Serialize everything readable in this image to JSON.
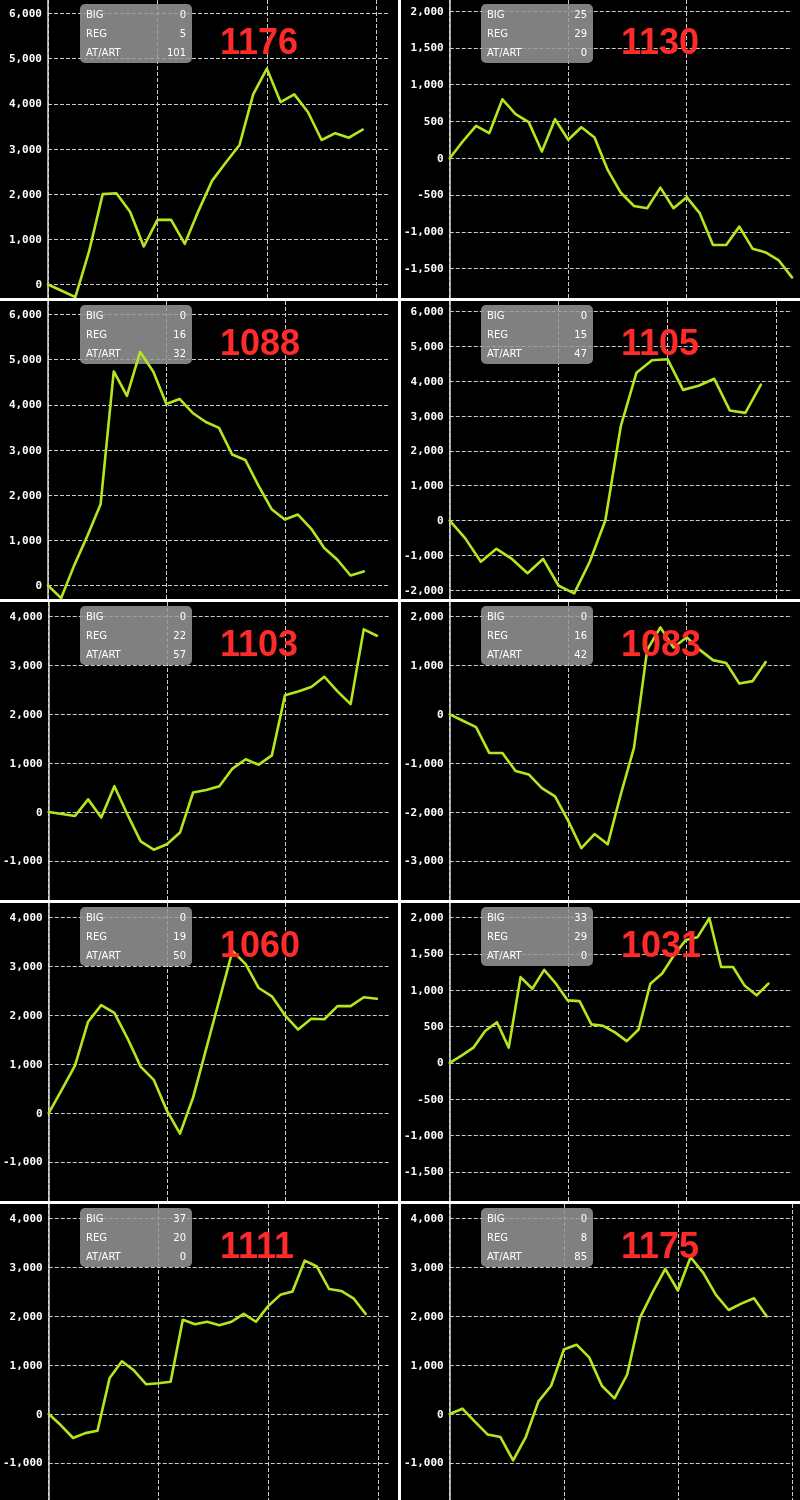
{
  "chart_data": [
    {
      "type": "line",
      "title": "1176",
      "annotations": [
        "BIG",
        "0",
        "REG",
        "5",
        "AT/ART",
        "101"
      ],
      "categories": [
        null,
        null,
        null,
        null,
        null,
        null,
        null,
        null,
        null,
        null,
        null,
        null,
        null,
        null,
        null,
        null,
        null,
        null,
        null,
        null,
        null,
        null,
        null,
        null,
        null,
        null
      ],
      "series": [
        {
          "color": "#b5e61d",
          "values": [
            0,
            -140,
            -280,
            730,
            2000,
            2020,
            1610,
            840,
            1430,
            1430,
            900,
            1630,
            2300,
            2700,
            3090,
            4210,
            4780,
            4040,
            4210,
            3820,
            3200,
            3350,
            3250,
            3430,
            null,
            null
          ]
        }
      ],
      "ylim": [
        -300,
        6300
      ],
      "yticks": [
        {
          "value": 0,
          "label": "0"
        },
        {
          "value": 1000,
          "label": "1,000"
        },
        {
          "value": 2000,
          "label": "2,000"
        },
        {
          "value": 3000,
          "label": "3,000"
        },
        {
          "value": 4000,
          "label": "4,000"
        },
        {
          "value": 5000,
          "label": "5,000"
        },
        {
          "value": 6000,
          "label": "6,000"
        }
      ],
      "grid": true,
      "tick_labels": "y",
      "marker": "none",
      "line_style": "solid"
    },
    {
      "type": "line",
      "title": "1130",
      "annotations": [
        "BIG",
        "25",
        "REG",
        "29",
        "AT/ART",
        "0"
      ],
      "categories": [
        null,
        null,
        null,
        null,
        null,
        null,
        null,
        null,
        null,
        null,
        null,
        null,
        null,
        null,
        null,
        null,
        null,
        null,
        null,
        null,
        null,
        null,
        null,
        null,
        null,
        null,
        null
      ],
      "series": [
        {
          "color": "#b5e61d",
          "values": [
            0,
            230,
            440,
            340,
            800,
            600,
            490,
            90,
            530,
            250,
            420,
            280,
            -160,
            -470,
            -650,
            -680,
            -400,
            -680,
            -530,
            -750,
            -1180,
            -1180,
            -930,
            -1230,
            -1280,
            -1390,
            -1620
          ]
        }
      ],
      "ylim": [
        -1900,
        2150
      ],
      "yticks": [
        {
          "value": -1500,
          "label": "-1,500"
        },
        {
          "value": -1000,
          "label": "-1,000"
        },
        -500,
        0,
        500,
        {
          "value": 1000,
          "label": "1,000"
        },
        {
          "value": 1500,
          "label": "1,500"
        },
        {
          "value": 2000,
          "label": "2,000"
        }
      ],
      "grid": true,
      "tick_labels": "y",
      "marker": "none",
      "line_style": "solid"
    },
    {
      "type": "line",
      "title": "1088",
      "annotations": [
        "BIG",
        "0",
        "REG",
        "16",
        "AT/ART",
        "32"
      ],
      "categories": [
        null,
        null,
        null,
        null,
        null,
        null,
        null,
        null,
        null,
        null,
        null,
        null,
        null,
        null,
        null,
        null,
        null,
        null,
        null,
        null,
        null,
        null,
        null,
        null,
        null,
        null,
        null
      ],
      "series": [
        {
          "color": "#b5e61d",
          "values": [
            0,
            -280,
            450,
            1100,
            1800,
            4740,
            4200,
            5170,
            4740,
            4020,
            4130,
            3820,
            3620,
            3490,
            2900,
            2780,
            2210,
            1690,
            1460,
            1570,
            1260,
            830,
            570,
            220,
            310,
            null,
            null
          ]
        }
      ],
      "ylim": [
        -300,
        6300
      ],
      "yticks": [
        {
          "value": 0,
          "label": "0"
        },
        {
          "value": 1000,
          "label": "1,000"
        },
        {
          "value": 2000,
          "label": "2,000"
        },
        {
          "value": 3000,
          "label": "3,000"
        },
        {
          "value": 4000,
          "label": "4,000"
        },
        {
          "value": 5000,
          "label": "5,000"
        },
        {
          "value": 6000,
          "label": "6,000"
        }
      ],
      "grid": true,
      "tick_labels": "y",
      "marker": "none",
      "line_style": "solid"
    },
    {
      "type": "line",
      "title": "1105",
      "annotations": [
        "BIG",
        "0",
        "REG",
        "15",
        "AT/ART",
        "47"
      ],
      "categories": [
        null,
        null,
        null,
        null,
        null,
        null,
        null,
        null,
        null,
        null,
        null,
        null,
        null,
        null,
        null,
        null,
        null,
        null,
        null,
        null,
        null,
        null,
        null
      ],
      "series": [
        {
          "color": "#b5e61d",
          "values": [
            0,
            -510,
            -1180,
            -810,
            -1100,
            -1510,
            -1100,
            -1870,
            -2090,
            -1180,
            0,
            2720,
            4240,
            4600,
            4630,
            3750,
            3870,
            4070,
            3160,
            3090,
            3900,
            null,
            null
          ]
        }
      ],
      "ylim": [
        -2250,
        6300
      ],
      "yticks": [
        {
          "value": -2000,
          "label": "-2,000"
        },
        {
          "value": -1000,
          "label": "-1,000"
        },
        0,
        {
          "value": 1000,
          "label": "1,000"
        },
        {
          "value": 2000,
          "label": "2,000"
        },
        {
          "value": 3000,
          "label": "3,000"
        },
        {
          "value": 4000,
          "label": "4,000"
        },
        {
          "value": 5000,
          "label": "5,000"
        },
        {
          "value": 6000,
          "label": "6,000"
        }
      ],
      "grid": true,
      "tick_labels": "y",
      "marker": "none",
      "line_style": "solid"
    },
    {
      "type": "line",
      "title": "1103",
      "annotations": [
        "BIG",
        "0",
        "REG",
        "22",
        "AT/ART",
        "57"
      ],
      "categories": [
        null,
        null,
        null,
        null,
        null,
        null,
        null,
        null,
        null,
        null,
        null,
        null,
        null,
        null,
        null,
        null,
        null,
        null,
        null,
        null,
        null,
        null,
        null,
        null,
        null,
        null,
        null
      ],
      "series": [
        {
          "color": "#b5e61d",
          "values": [
            0,
            -40,
            -80,
            260,
            -110,
            530,
            -50,
            -600,
            -770,
            -660,
            -420,
            400,
            450,
            530,
            890,
            1080,
            970,
            1160,
            2390,
            2470,
            2560,
            2770,
            2470,
            2210,
            3740,
            3610,
            null
          ]
        }
      ],
      "ylim": [
        -1800,
        4300
      ],
      "yticks": [
        {
          "value": -1000,
          "label": "-1,000"
        },
        0,
        {
          "value": 1000,
          "label": "1,000"
        },
        {
          "value": 2000,
          "label": "2,000"
        },
        {
          "value": 3000,
          "label": "3,000"
        },
        {
          "value": 4000,
          "label": "4,000"
        }
      ],
      "grid": true,
      "tick_labels": "y",
      "marker": "none",
      "line_style": "solid"
    },
    {
      "type": "line",
      "title": "1083",
      "annotations": [
        "BIG",
        "0",
        "REG",
        "16",
        "AT/ART",
        "42"
      ],
      "categories": [
        null,
        null,
        null,
        null,
        null,
        null,
        null,
        null,
        null,
        null,
        null,
        null,
        null,
        null,
        null,
        null,
        null,
        null,
        null,
        null,
        null,
        null,
        null,
        null,
        null,
        null,
        null
      ],
      "series": [
        {
          "color": "#b5e61d",
          "values": [
            0,
            -130,
            -260,
            -790,
            -790,
            -1160,
            -1230,
            -1510,
            -1680,
            -2180,
            -2740,
            -2450,
            -2660,
            -1630,
            -680,
            1320,
            1780,
            1370,
            1580,
            1320,
            1110,
            1050,
            630,
            680,
            1070,
            null,
            null
          ]
        }
      ],
      "ylim": [
        -3800,
        2300
      ],
      "yticks": [
        {
          "value": -3000,
          "label": "-3,000"
        },
        {
          "value": -2000,
          "label": "-2,000"
        },
        {
          "value": -1000,
          "label": "-1,000"
        },
        0,
        {
          "value": 1000,
          "label": "1,000"
        },
        {
          "value": 2000,
          "label": "2,000"
        }
      ],
      "grid": true,
      "tick_labels": "y",
      "marker": "none",
      "line_style": "solid"
    },
    {
      "type": "line",
      "title": "1060",
      "annotations": [
        "BIG",
        "0",
        "REG",
        "19",
        "AT/ART",
        "50"
      ],
      "categories": [
        null,
        null,
        null,
        null,
        null,
        null,
        null,
        null,
        null,
        null,
        null,
        null,
        null,
        null,
        null,
        null,
        null,
        null,
        null,
        null,
        null,
        null,
        null,
        null,
        null,
        null,
        null
      ],
      "series": [
        {
          "color": "#b5e61d",
          "values": [
            0,
            480,
            970,
            1870,
            2210,
            2050,
            1530,
            950,
            680,
            50,
            -420,
            320,
            1320,
            2320,
            3320,
            3050,
            2560,
            2390,
            2000,
            1710,
            1930,
            1920,
            2190,
            2190,
            2370,
            2340,
            null
          ]
        }
      ],
      "ylim": [
        -1800,
        4300
      ],
      "yticks": [
        {
          "value": -1000,
          "label": "-1,000"
        },
        0,
        {
          "value": 1000,
          "label": "1,000"
        },
        {
          "value": 2000,
          "label": "2,000"
        },
        {
          "value": 3000,
          "label": "3,000"
        },
        {
          "value": 4000,
          "label": "4,000"
        }
      ],
      "grid": true,
      "tick_labels": "y",
      "marker": "none",
      "line_style": "solid"
    },
    {
      "type": "line",
      "title": "1031",
      "annotations": [
        "BIG",
        "33",
        "REG",
        "29",
        "AT/ART",
        "0"
      ],
      "categories": [
        null,
        null,
        null,
        null,
        null,
        null,
        null,
        null,
        null,
        null,
        null,
        null,
        null,
        null,
        null,
        null,
        null,
        null,
        null,
        null,
        null,
        null,
        null,
        null,
        null,
        null,
        null,
        null,
        null,
        null
      ],
      "series": [
        {
          "color": "#b5e61d",
          "values": [
            0,
            100,
            210,
            440,
            560,
            210,
            1180,
            1020,
            1280,
            1090,
            860,
            850,
            530,
            510,
            420,
            300,
            460,
            1090,
            1230,
            1480,
            1690,
            1730,
            1990,
            1320,
            1320,
            1060,
            930,
            1090,
            null,
            null
          ]
        }
      ],
      "ylim": [
        -1900,
        2200
      ],
      "yticks": [
        {
          "value": -1500,
          "label": "-1,500"
        },
        {
          "value": -1000,
          "label": "-1,000"
        },
        -500,
        0,
        500,
        {
          "value": 1000,
          "label": "1,000"
        },
        {
          "value": 1500,
          "label": "1,500"
        },
        {
          "value": 2000,
          "label": "2,000"
        }
      ],
      "grid": true,
      "tick_labels": "y",
      "marker": "none",
      "line_style": "solid"
    },
    {
      "type": "line",
      "title": "1111",
      "annotations": [
        "BIG",
        "37",
        "REG",
        "20",
        "AT/ART",
        "0"
      ],
      "categories": [
        null,
        null,
        null,
        null,
        null,
        null,
        null,
        null,
        null,
        null,
        null,
        null,
        null,
        null,
        null,
        null,
        null,
        null,
        null,
        null,
        null,
        null,
        null,
        null,
        null,
        null,
        null,
        null,
        null
      ],
      "series": [
        {
          "color": "#b5e61d",
          "values": [
            0,
            -230,
            -490,
            -390,
            -340,
            740,
            1080,
            890,
            610,
            630,
            660,
            1930,
            1840,
            1890,
            1820,
            1890,
            2050,
            1890,
            2210,
            2440,
            2510,
            3140,
            3020,
            2560,
            2520,
            2370,
            2050,
            null,
            null
          ]
        }
      ],
      "ylim": [
        -1800,
        4300
      ],
      "yticks": [
        {
          "value": -1000,
          "label": "-1,000"
        },
        0,
        {
          "value": 1000,
          "label": "1,000"
        },
        {
          "value": 2000,
          "label": "2,000"
        },
        {
          "value": 3000,
          "label": "3,000"
        },
        {
          "value": 4000,
          "label": "4,000"
        }
      ],
      "grid": true,
      "tick_labels": "y",
      "marker": "none",
      "line_style": "solid"
    },
    {
      "type": "line",
      "title": "1175",
      "annotations": [
        "BIG",
        "0",
        "REG",
        "8",
        "AT/ART",
        "85"
      ],
      "categories": [
        null,
        null,
        null,
        null,
        null,
        null,
        null,
        null,
        null,
        null,
        null,
        null,
        null,
        null,
        null,
        null,
        null,
        null,
        null,
        null,
        null,
        null,
        null,
        null,
        null,
        null,
        null,
        null
      ],
      "series": [
        {
          "color": "#b5e61d",
          "values": [
            0,
            110,
            -160,
            -420,
            -470,
            -950,
            -470,
            260,
            580,
            1320,
            1420,
            1160,
            580,
            320,
            810,
            1970,
            2490,
            2970,
            2530,
            3210,
            2890,
            2440,
            2130,
            2260,
            2370,
            2000,
            null,
            null
          ]
        }
      ],
      "ylim": [
        -1800,
        4300
      ],
      "yticks": [
        {
          "value": -1000,
          "label": "-1,000"
        },
        0,
        {
          "value": 1000,
          "label": "1,000"
        },
        {
          "value": 2000,
          "label": "2,000"
        },
        {
          "value": 3000,
          "label": "3,000"
        },
        {
          "value": 4000,
          "label": "4,000"
        }
      ],
      "grid": true,
      "tick_labels": "y",
      "marker": "none",
      "line_style": "solid"
    }
  ]
}
